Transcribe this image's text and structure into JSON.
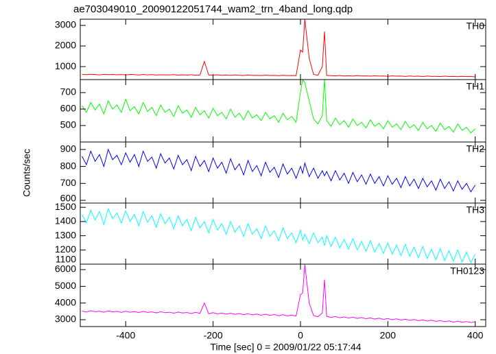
{
  "chart_data": [
    {
      "type": "line",
      "title": "ae703049010_20090122051744_wam2_trn_4band_long.qdp",
      "annotation": "TH0",
      "color": "#ff0000",
      "xlim": [
        -504,
        424
      ],
      "ylim": [
        370,
        3300
      ],
      "yticks": [
        1000,
        2000,
        3000
      ],
      "x": [
        -500,
        -490,
        -480,
        -470,
        -460,
        -450,
        -440,
        -430,
        -420,
        -410,
        -400,
        -390,
        -380,
        -370,
        -360,
        -350,
        -340,
        -330,
        -320,
        -310,
        -300,
        -290,
        -280,
        -270,
        -260,
        -250,
        -240,
        -230,
        -220,
        -210,
        -200,
        -190,
        -180,
        -170,
        -160,
        -150,
        -140,
        -130,
        -120,
        -110,
        -100,
        -90,
        -80,
        -70,
        -60,
        -50,
        -40,
        -30,
        -20,
        -10,
        0,
        5,
        10,
        20,
        30,
        40,
        50,
        55,
        60,
        70,
        80,
        90,
        100,
        110,
        120,
        130,
        140,
        150,
        160,
        170,
        180,
        190,
        200,
        210,
        220,
        230,
        240,
        250,
        260,
        270,
        280,
        290,
        300,
        310,
        320,
        330,
        340,
        350,
        360,
        370,
        380,
        390,
        400
      ],
      "values": [
        620,
        610,
        630,
        615,
        600,
        625,
        610,
        620,
        605,
        615,
        600,
        620,
        610,
        595,
        615,
        600,
        610,
        590,
        605,
        600,
        595,
        610,
        585,
        600,
        590,
        605,
        580,
        595,
        1250,
        590,
        585,
        600,
        580,
        590,
        575,
        595,
        580,
        570,
        590,
        575,
        580,
        565,
        585,
        570,
        575,
        560,
        580,
        565,
        570,
        560,
        1800,
        1700,
        3300,
        1400,
        620,
        580,
        1000,
        2700,
        570,
        560,
        550,
        565,
        545,
        555,
        540,
        560,
        545,
        550,
        535,
        555,
        540,
        545,
        530,
        550,
        535,
        540,
        525,
        545,
        530,
        535,
        520,
        540,
        525,
        530,
        515,
        535,
        520,
        525,
        510,
        530,
        515,
        520,
        505
      ]
    },
    {
      "type": "line",
      "annotation": "TH1",
      "color": "#00ff00",
      "xlim": [
        -504,
        424
      ],
      "ylim": [
        400,
        779
      ],
      "yticks": [
        500,
        600,
        700
      ],
      "x": [
        -500,
        -490,
        -480,
        -470,
        -460,
        -450,
        -440,
        -430,
        -420,
        -410,
        -400,
        -390,
        -380,
        -370,
        -360,
        -350,
        -340,
        -330,
        -320,
        -310,
        -300,
        -290,
        -280,
        -270,
        -260,
        -250,
        -240,
        -230,
        -220,
        -210,
        -200,
        -190,
        -180,
        -170,
        -160,
        -150,
        -140,
        -130,
        -120,
        -110,
        -100,
        -90,
        -80,
        -70,
        -60,
        -50,
        -40,
        -30,
        -20,
        -10,
        0,
        5,
        10,
        20,
        30,
        40,
        50,
        55,
        60,
        70,
        80,
        90,
        100,
        110,
        120,
        130,
        140,
        150,
        160,
        170,
        180,
        190,
        200,
        210,
        220,
        230,
        240,
        250,
        260,
        270,
        280,
        290,
        300,
        310,
        320,
        330,
        340,
        350,
        360,
        370,
        380,
        390,
        400
      ],
      "values": [
        620,
        580,
        640,
        595,
        630,
        570,
        650,
        600,
        625,
        580,
        660,
        590,
        615,
        570,
        640,
        585,
        610,
        560,
        625,
        580,
        600,
        555,
        620,
        575,
        595,
        550,
        610,
        565,
        590,
        545,
        605,
        560,
        580,
        540,
        600,
        550,
        575,
        535,
        590,
        545,
        565,
        530,
        580,
        540,
        560,
        520,
        575,
        535,
        555,
        520,
        700,
        780,
        760,
        650,
        540,
        510,
        560,
        780,
        530,
        495,
        545,
        505,
        530,
        490,
        540,
        500,
        520,
        485,
        535,
        495,
        515,
        480,
        530,
        490,
        510,
        475,
        525,
        485,
        505,
        470,
        520,
        480,
        500,
        465,
        515,
        475,
        495,
        460,
        510,
        470,
        490,
        455,
        480
      ]
    },
    {
      "type": "line",
      "annotation": "TH2",
      "color": "#0000ff",
      "ylabel": "Counts/sec",
      "xlim": [
        -504,
        424
      ],
      "ylim": [
        584,
        944
      ],
      "yticks": [
        600,
        700,
        800,
        900
      ],
      "x": [
        -500,
        -490,
        -480,
        -470,
        -460,
        -450,
        -440,
        -430,
        -420,
        -410,
        -400,
        -390,
        -380,
        -370,
        -360,
        -350,
        -340,
        -330,
        -320,
        -310,
        -300,
        -290,
        -280,
        -270,
        -260,
        -250,
        -240,
        -230,
        -220,
        -210,
        -200,
        -190,
        -180,
        -170,
        -160,
        -150,
        -140,
        -130,
        -120,
        -110,
        -100,
        -90,
        -80,
        -70,
        -60,
        -50,
        -40,
        -30,
        -20,
        -10,
        0,
        5,
        10,
        20,
        30,
        40,
        50,
        55,
        60,
        70,
        80,
        90,
        100,
        110,
        120,
        130,
        140,
        150,
        160,
        170,
        180,
        190,
        200,
        210,
        220,
        230,
        240,
        250,
        260,
        270,
        280,
        290,
        300,
        310,
        320,
        330,
        340,
        350,
        360,
        370,
        380,
        390,
        400
      ],
      "values": [
        860,
        810,
        890,
        830,
        870,
        800,
        900,
        840,
        865,
        810,
        880,
        825,
        870,
        800,
        890,
        830,
        855,
        790,
        875,
        820,
        850,
        785,
        865,
        810,
        840,
        775,
        860,
        800,
        835,
        770,
        850,
        790,
        825,
        760,
        845,
        780,
        815,
        750,
        835,
        770,
        805,
        745,
        825,
        765,
        795,
        735,
        815,
        755,
        790,
        730,
        800,
        760,
        820,
        740,
        790,
        730,
        775,
        745,
        770,
        715,
        775,
        720,
        760,
        700,
        765,
        710,
        750,
        695,
        755,
        700,
        740,
        685,
        745,
        695,
        730,
        675,
        740,
        685,
        725,
        670,
        730,
        680,
        715,
        660,
        725,
        670,
        710,
        655,
        715,
        665,
        700,
        650,
        690
      ]
    },
    {
      "type": "line",
      "annotation": "TH3",
      "color": "#00ffff",
      "xlim": [
        -504,
        424
      ],
      "ylim": [
        1100,
        1530
      ],
      "yticks": [
        1100,
        1200,
        1300,
        1400,
        1500
      ],
      "x": [
        -500,
        -490,
        -480,
        -470,
        -460,
        -450,
        -440,
        -430,
        -420,
        -410,
        -400,
        -390,
        -380,
        -370,
        -360,
        -350,
        -340,
        -330,
        -320,
        -310,
        -300,
        -290,
        -280,
        -270,
        -260,
        -250,
        -240,
        -230,
        -220,
        -210,
        -200,
        -190,
        -180,
        -170,
        -160,
        -150,
        -140,
        -130,
        -120,
        -110,
        -100,
        -90,
        -80,
        -70,
        -60,
        -50,
        -40,
        -30,
        -20,
        -10,
        0,
        5,
        10,
        20,
        30,
        40,
        50,
        55,
        60,
        70,
        80,
        90,
        100,
        110,
        120,
        130,
        140,
        150,
        160,
        170,
        180,
        190,
        200,
        210,
        220,
        230,
        240,
        250,
        260,
        270,
        280,
        290,
        300,
        310,
        320,
        330,
        340,
        350,
        360,
        370,
        380,
        390,
        400
      ],
      "values": [
        1450,
        1390,
        1480,
        1410,
        1470,
        1380,
        1490,
        1420,
        1460,
        1390,
        1475,
        1400,
        1450,
        1370,
        1470,
        1395,
        1440,
        1360,
        1455,
        1385,
        1430,
        1350,
        1440,
        1370,
        1415,
        1335,
        1430,
        1355,
        1400,
        1320,
        1415,
        1340,
        1385,
        1310,
        1400,
        1325,
        1370,
        1295,
        1385,
        1310,
        1350,
        1280,
        1370,
        1295,
        1335,
        1265,
        1355,
        1280,
        1320,
        1250,
        1340,
        1270,
        1310,
        1245,
        1320,
        1250,
        1290,
        1230,
        1300,
        1225,
        1290,
        1215,
        1275,
        1205,
        1280,
        1200,
        1260,
        1190,
        1265,
        1185,
        1245,
        1175,
        1250,
        1170,
        1235,
        1160,
        1240,
        1155,
        1220,
        1145,
        1225,
        1140,
        1205,
        1130,
        1210,
        1125,
        1195,
        1120,
        1200,
        1115,
        1185,
        1110,
        1170
      ]
    },
    {
      "type": "line",
      "annotation": "TH0123",
      "color": "#ff00ff",
      "xlabel": "Time [sec] 0 = 2009/01/22 05:17:44",
      "xlim": [
        -504,
        424
      ],
      "ylim": [
        2590,
        6330
      ],
      "yticks": [
        3000,
        4000,
        5000,
        6000
      ],
      "xticks": [
        -400,
        -200,
        0,
        200,
        400
      ],
      "x": [
        -500,
        -490,
        -480,
        -470,
        -460,
        -450,
        -440,
        -430,
        -420,
        -410,
        -400,
        -390,
        -380,
        -370,
        -360,
        -350,
        -340,
        -330,
        -320,
        -310,
        -300,
        -290,
        -280,
        -270,
        -260,
        -250,
        -240,
        -230,
        -220,
        -210,
        -200,
        -190,
        -180,
        -170,
        -160,
        -150,
        -140,
        -130,
        -120,
        -110,
        -100,
        -90,
        -80,
        -70,
        -60,
        -50,
        -40,
        -30,
        -20,
        -10,
        0,
        5,
        10,
        20,
        30,
        40,
        50,
        55,
        60,
        70,
        80,
        90,
        100,
        110,
        120,
        130,
        140,
        150,
        160,
        170,
        180,
        190,
        200,
        210,
        220,
        230,
        240,
        250,
        260,
        270,
        280,
        290,
        300,
        310,
        320,
        330,
        340,
        350,
        360,
        370,
        380,
        390,
        400
      ],
      "values": [
        3520,
        3460,
        3540,
        3480,
        3510,
        3450,
        3530,
        3470,
        3500,
        3440,
        3510,
        3450,
        3490,
        3430,
        3500,
        3440,
        3470,
        3410,
        3480,
        3420,
        3450,
        3390,
        3460,
        3400,
        3430,
        3370,
        3440,
        3380,
        4000,
        3360,
        3420,
        3350,
        3400,
        3330,
        3390,
        3320,
        3370,
        3300,
        3360,
        3290,
        3340,
        3270,
        3330,
        3260,
        3310,
        3240,
        3300,
        3230,
        3280,
        3220,
        4500,
        4600,
        6300,
        4000,
        3250,
        3180,
        3400,
        5400,
        3200,
        3140,
        3190,
        3120,
        3170,
        3100,
        3150,
        3080,
        3130,
        3060,
        3110,
        3040,
        3090,
        3020,
        3070,
        3000,
        3050,
        2980,
        3030,
        2960,
        3010,
        2940,
        2990,
        2920,
        2970,
        2900,
        2950,
        2880,
        2930,
        2860,
        2910,
        2850,
        2890,
        2830,
        2870
      ]
    }
  ]
}
